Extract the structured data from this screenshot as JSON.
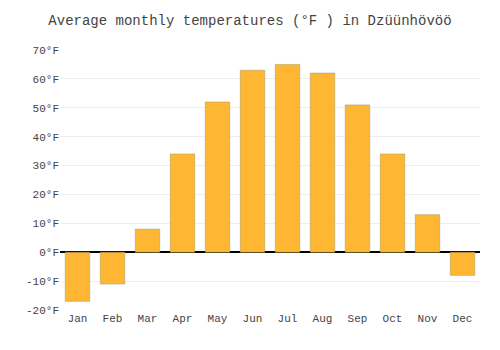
{
  "chart_data": {
    "type": "bar",
    "title": "Average monthly temperatures (°F ) in Dzüünhövöö",
    "categories": [
      "Jan",
      "Feb",
      "Mar",
      "Apr",
      "May",
      "Jun",
      "Jul",
      "Aug",
      "Sep",
      "Oct",
      "Nov",
      "Dec"
    ],
    "values": [
      -17,
      -11,
      8,
      34,
      52,
      63,
      65,
      62,
      51,
      34,
      13,
      -8
    ],
    "color": "#FFB733",
    "ylim": [
      -20,
      70
    ],
    "yticks": [
      {
        "value": -20,
        "label": "-20°F"
      },
      {
        "value": -10,
        "label": "-10°F"
      },
      {
        "value": 0,
        "label": "0°F"
      },
      {
        "value": 10,
        "label": "10°F"
      },
      {
        "value": 20,
        "label": "20°F"
      },
      {
        "value": 30,
        "label": "30°F"
      },
      {
        "value": 40,
        "label": "40°F"
      },
      {
        "value": 50,
        "label": "50°F"
      },
      {
        "value": 60,
        "label": "60°F"
      },
      {
        "value": 70,
        "label": "70°F"
      }
    ],
    "grid": true
  }
}
